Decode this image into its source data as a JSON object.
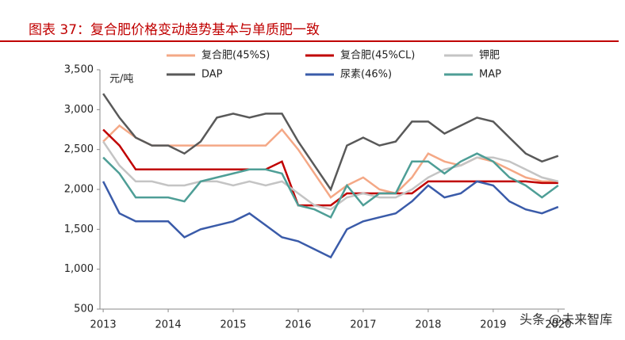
{
  "chart_data": {
    "type": "line",
    "title": "图表 37：复合肥价格变动趋势基本与单质肥一致",
    "y_unit_label": "元/吨",
    "annotation": "头条 @未来智库",
    "x": [
      2013,
      2013.25,
      2013.5,
      2013.75,
      2014,
      2014.25,
      2014.5,
      2014.75,
      2015,
      2015.25,
      2015.5,
      2015.75,
      2016,
      2016.25,
      2016.5,
      2016.75,
      2017,
      2017.25,
      2017.5,
      2017.75,
      2018,
      2018.25,
      2018.5,
      2018.75,
      2019,
      2019.25,
      2019.5,
      2019.75,
      2020
    ],
    "xlim": [
      2012.95,
      2020.1
    ],
    "xticks": [
      2013,
      2014,
      2015,
      2016,
      2017,
      2018,
      2019,
      2020
    ],
    "ylim": [
      500,
      3500
    ],
    "yticks": [
      {
        "value": 3500,
        "label": "3,500"
      },
      {
        "value": 3000,
        "label": "3,000"
      },
      {
        "value": 2500,
        "label": "2,500"
      },
      {
        "value": 2000,
        "label": "2,000"
      },
      {
        "value": 1500,
        "label": "1,500"
      },
      {
        "value": 1000,
        "label": "1,000"
      },
      500
    ],
    "grid": false,
    "series": [
      {
        "name": "复合肥(45%S)",
        "color": "#F4A886",
        "values": [
          2600,
          2800,
          2650,
          2550,
          2550,
          2550,
          2550,
          2550,
          2550,
          2550,
          2550,
          2750,
          2500,
          2200,
          1900,
          2050,
          2150,
          2000,
          1950,
          2150,
          2450,
          2350,
          2300,
          2400,
          2350,
          2250,
          2150,
          2100,
          2100
        ]
      },
      {
        "name": "复合肥(45%CL)",
        "color": "#C00000",
        "values": [
          2750,
          2550,
          2250,
          2250,
          2250,
          2250,
          2250,
          2250,
          2250,
          2250,
          2250,
          2350,
          1800,
          1800,
          1800,
          1950,
          1950,
          1950,
          1950,
          1950,
          2100,
          2100,
          2100,
          2100,
          2100,
          2100,
          2100,
          2080,
          2080
        ]
      },
      {
        "name": "钾肥",
        "color": "#C4C4C4",
        "values": [
          2600,
          2300,
          2100,
          2100,
          2050,
          2050,
          2100,
          2100,
          2050,
          2100,
          2050,
          2100,
          1950,
          1800,
          1750,
          1900,
          1950,
          1900,
          1900,
          2000,
          2150,
          2250,
          2300,
          2400,
          2400,
          2350,
          2250,
          2150,
          2100
        ]
      },
      {
        "name": "DAP",
        "color": "#595959",
        "values": [
          3200,
          2900,
          2650,
          2550,
          2550,
          2450,
          2600,
          2900,
          2950,
          2900,
          2950,
          2950,
          2600,
          2300,
          2000,
          2550,
          2650,
          2550,
          2600,
          2850,
          2850,
          2700,
          2800,
          2900,
          2850,
          2650,
          2450,
          2350,
          2420
        ]
      },
      {
        "name": "尿素(46%)",
        "color": "#3A5BA9",
        "values": [
          2100,
          1700,
          1600,
          1600,
          1600,
          1400,
          1500,
          1550,
          1600,
          1700,
          1550,
          1400,
          1350,
          1250,
          1150,
          1500,
          1600,
          1650,
          1700,
          1850,
          2050,
          1900,
          1950,
          2100,
          2050,
          1850,
          1750,
          1700,
          1780
        ]
      },
      {
        "name": "MAP",
        "color": "#4E9E96",
        "values": [
          2400,
          2200,
          1900,
          1900,
          1900,
          1850,
          2100,
          2150,
          2200,
          2250,
          2250,
          2200,
          1800,
          1750,
          1650,
          2050,
          1800,
          1950,
          1950,
          2350,
          2350,
          2200,
          2350,
          2450,
          2350,
          2150,
          2050,
          1900,
          2050
        ]
      }
    ]
  }
}
